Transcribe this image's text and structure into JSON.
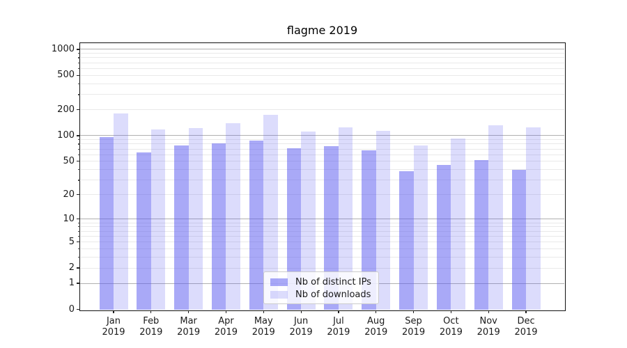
{
  "chart_data": {
    "type": "bar",
    "title": "flagme 2019",
    "categories": [
      "Jan 2019",
      "Feb 2019",
      "Mar 2019",
      "Apr 2019",
      "May 2019",
      "Jun 2019",
      "Jul 2019",
      "Aug 2019",
      "Sep 2019",
      "Oct 2019",
      "Nov 2019",
      "Dec 2019"
    ],
    "series": [
      {
        "name": "Nb of distinct IPs",
        "color": "#acacf7",
        "fill": "rgba(90,90,240,0.52)",
        "values": [
          96,
          64,
          77,
          82,
          88,
          72,
          76,
          68,
          38,
          45,
          52,
          40
        ]
      },
      {
        "name": "Nb of downloads",
        "color": "#dcdcf8",
        "fill": "rgba(90,90,240,0.21)",
        "values": [
          180,
          118,
          122,
          141,
          176,
          112,
          126,
          113,
          77,
          93,
          132,
          125
        ]
      }
    ],
    "yscale": "log1p",
    "yticks": [
      0,
      1,
      2,
      5,
      10,
      20,
      50,
      100,
      200,
      500,
      1000
    ],
    "major_grid_ticks": [
      1,
      10,
      100,
      1000
    ],
    "ylim": [
      0,
      1180
    ],
    "xlabel": "",
    "ylabel": "",
    "grid": true,
    "legend_position": "lower center"
  }
}
